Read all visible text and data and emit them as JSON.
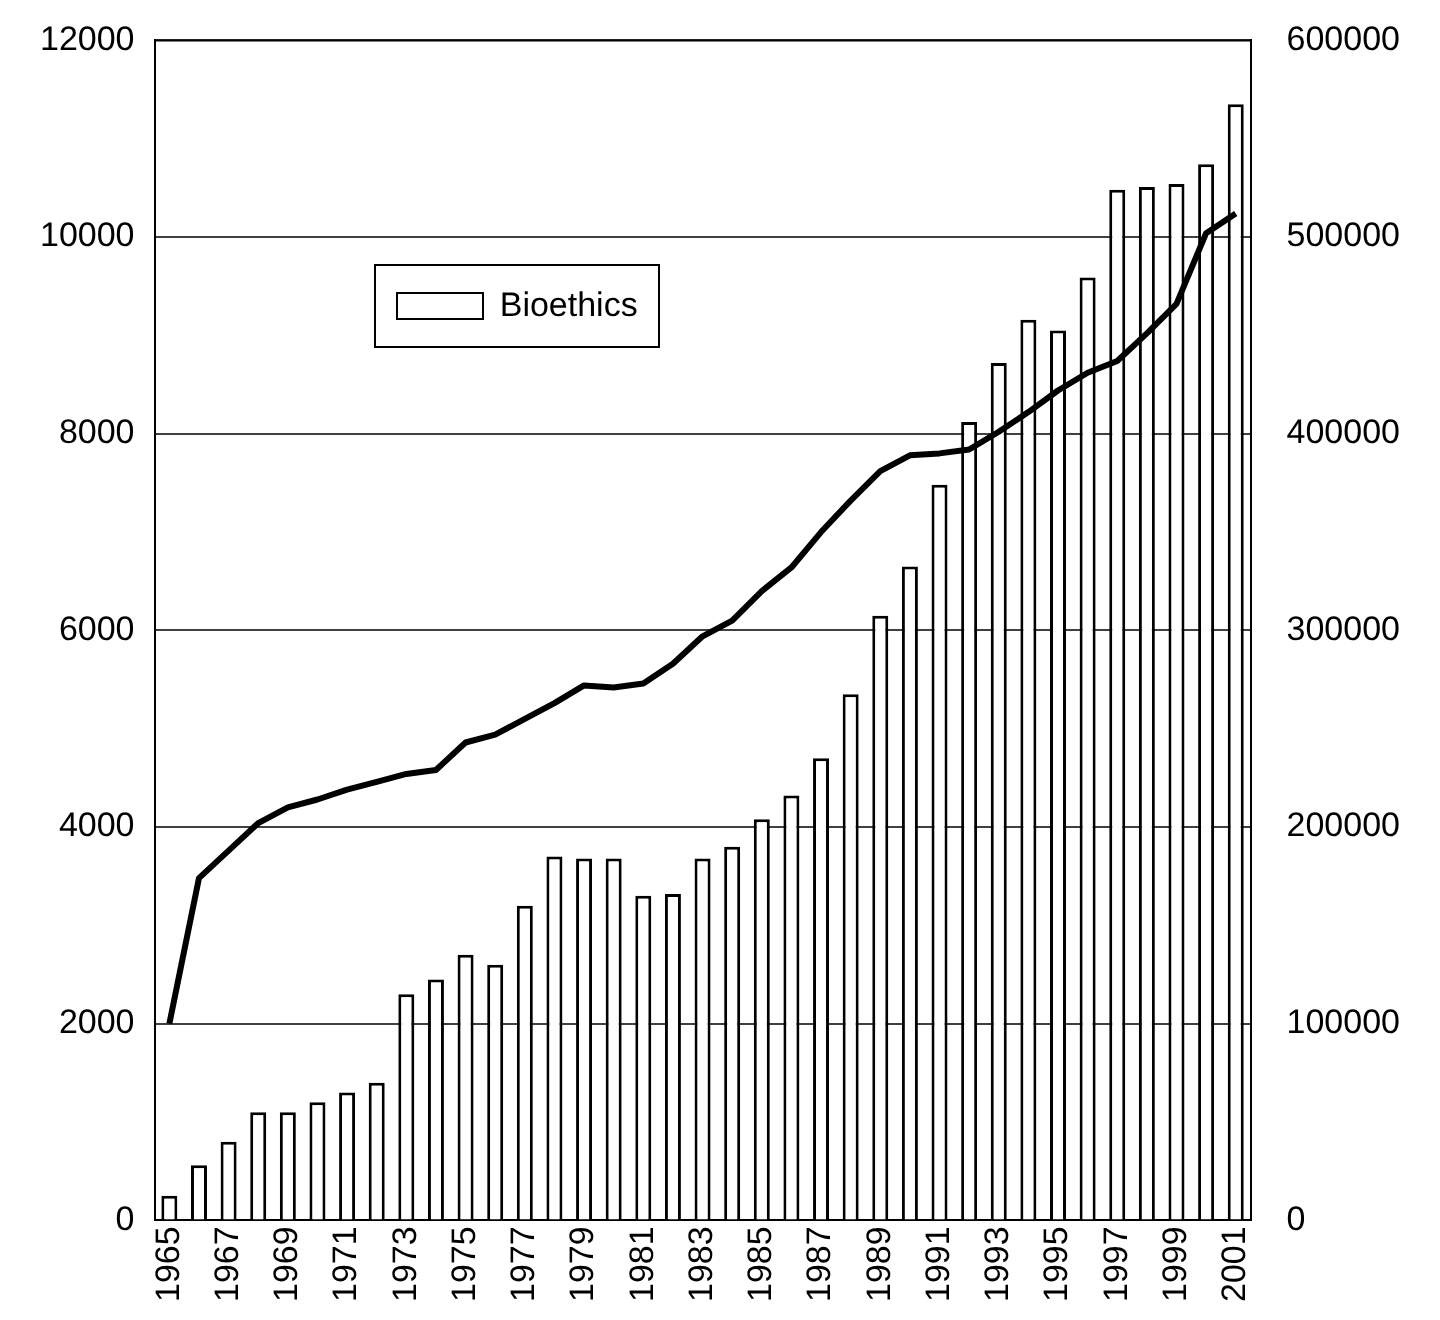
{
  "chart_data": {
    "type": "bar",
    "categories": [
      "1965",
      null,
      "1967",
      null,
      "1969",
      null,
      "1971",
      null,
      "1973",
      null,
      "1975",
      null,
      "1977",
      null,
      "1979",
      null,
      "1981",
      null,
      "1983",
      null,
      "1985",
      null,
      "1987",
      null,
      "1989",
      null,
      "1991",
      null,
      "1993",
      null,
      "1995",
      null,
      "1997",
      null,
      "1999",
      null,
      "2001"
    ],
    "series": [
      {
        "name": "Bioethics",
        "color": "#ffffff",
        "values": [
          250,
          560,
          800,
          1100,
          1100,
          1200,
          1300,
          1400,
          2300,
          2450,
          2700,
          2600,
          3200,
          3700,
          3680,
          3680,
          3300,
          3320,
          3680,
          3800,
          4080,
          4320,
          4700,
          5350,
          6150,
          6650,
          7480,
          8120,
          8720,
          9160,
          9050,
          9590,
          10480,
          10510,
          10540,
          10740,
          11350
        ]
      },
      {
        "type": "line",
        "axis": "y2",
        "color": "#000000",
        "values": [
          100000,
          174000,
          188000,
          202000,
          210000,
          214000,
          219000,
          223000,
          227000,
          229000,
          243000,
          247000,
          255000,
          263000,
          272000,
          271000,
          273000,
          283000,
          297000,
          305000,
          320000,
          332000,
          350000,
          366000,
          381000,
          389000,
          390000,
          392000,
          401000,
          411000,
          422000,
          431000,
          437000,
          451000,
          466000,
          502000,
          512000
        ]
      }
    ],
    "ylim": [
      0,
      12000
    ],
    "yticks": [
      0,
      2000,
      4000,
      6000,
      8000,
      10000,
      12000
    ],
    "y2lim": [
      0,
      600000
    ],
    "y2ticks": [
      0,
      100000,
      200000,
      300000,
      400000,
      500000,
      600000
    ],
    "grid": "y",
    "legend": "top left",
    "marker": "none",
    "line_style": "solid"
  }
}
